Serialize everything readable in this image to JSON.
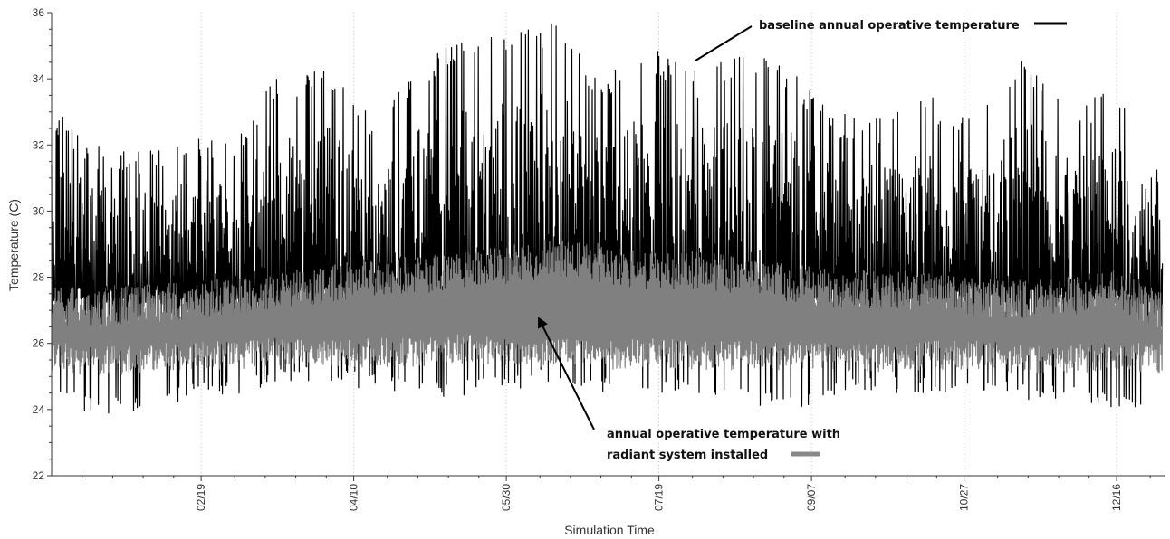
{
  "chart_data": {
    "type": "line",
    "title": "",
    "xlabel": "Simulation Time",
    "ylabel": "Temperature (C)",
    "ylim": [
      22,
      36
    ],
    "xlim": [
      "01-01",
      "12-31"
    ],
    "yticks": [
      22,
      24,
      26,
      28,
      30,
      32,
      34,
      36
    ],
    "xticks": [
      "02/19",
      "04/10",
      "05/30",
      "07/19",
      "09/07",
      "10/27",
      "12/16"
    ],
    "grid": "dotted vertical lines at x ticks",
    "series": [
      {
        "name": "baseline annual operative temperature",
        "color": "#000000",
        "sampled_daily_x": [
          "01/01",
          "01/15",
          "02/01",
          "02/15",
          "03/01",
          "03/15",
          "04/01",
          "04/15",
          "05/01",
          "05/15",
          "06/01",
          "06/15",
          "07/01",
          "07/15",
          "08/01",
          "08/15",
          "09/01",
          "09/15",
          "10/01",
          "10/15",
          "11/01",
          "11/15",
          "12/01",
          "12/15",
          "12/31"
        ],
        "sampled_daily_min": [
          24.4,
          23.8,
          24.0,
          24.3,
          24.4,
          24.8,
          24.8,
          24.6,
          24.4,
          24.4,
          24.6,
          24.8,
          24.5,
          24.5,
          24.4,
          24.2,
          24.0,
          24.4,
          24.5,
          24.5,
          24.5,
          24.3,
          24.2,
          24.0,
          23.8
        ],
        "sampled_daily_max": [
          33.2,
          32.0,
          31.8,
          32.3,
          32.0,
          34.0,
          34.4,
          33.0,
          34.4,
          35.4,
          35.4,
          35.8,
          34.0,
          35.0,
          34.2,
          35.0,
          34.2,
          33.0,
          32.8,
          33.5,
          32.8,
          35.0,
          33.0,
          33.8,
          31.0
        ]
      },
      {
        "name": "annual operative temperature with radiant system installed",
        "color": "#808080",
        "sampled_daily_x": [
          "01/01",
          "01/15",
          "02/01",
          "02/15",
          "03/01",
          "03/15",
          "04/01",
          "04/15",
          "05/01",
          "05/15",
          "06/01",
          "06/15",
          "07/01",
          "07/15",
          "08/01",
          "08/15",
          "09/01",
          "09/15",
          "10/01",
          "10/15",
          "11/01",
          "11/15",
          "12/01",
          "12/15",
          "12/31"
        ],
        "sampled_daily_min": [
          25.2,
          25.0,
          25.1,
          25.2,
          25.2,
          25.3,
          25.2,
          25.3,
          25.3,
          25.4,
          25.3,
          25.3,
          25.2,
          25.3,
          25.2,
          25.2,
          25.2,
          25.2,
          25.1,
          25.2,
          25.2,
          25.1,
          25.1,
          25.2,
          25.1
        ],
        "sampled_daily_max": [
          27.8,
          27.6,
          27.8,
          27.9,
          28.0,
          28.2,
          28.4,
          28.6,
          28.6,
          28.8,
          29.0,
          29.2,
          29.0,
          28.8,
          28.8,
          28.6,
          28.4,
          28.2,
          28.2,
          28.2,
          28.0,
          27.9,
          28.0,
          28.2,
          27.6
        ]
      }
    ],
    "annotations": [
      {
        "text": "baseline annual operative temperature",
        "points_to": "baseline series near 07/29"
      },
      {
        "text_lines": [
          "annual operative temperature with",
          "radiant system installed"
        ],
        "points_to": "radiant series near 06/06"
      }
    ]
  }
}
